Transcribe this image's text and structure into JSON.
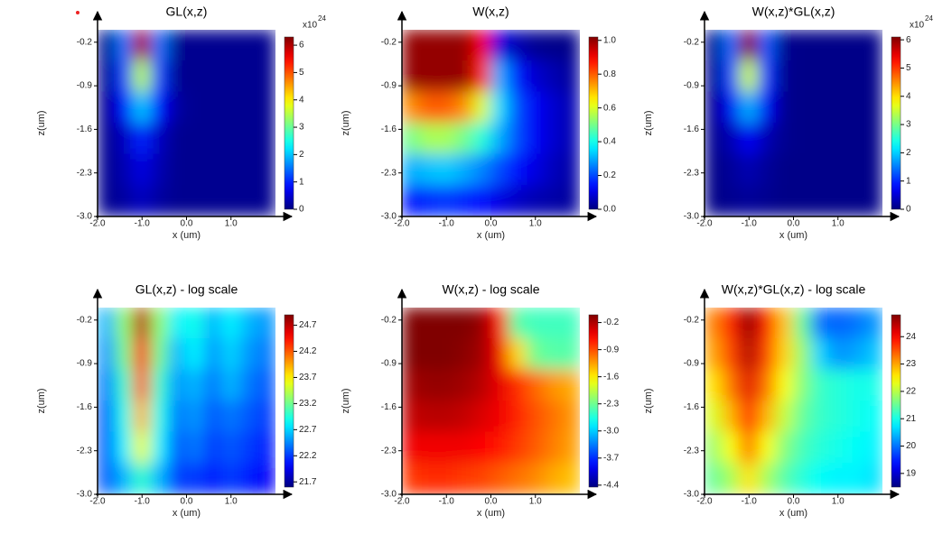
{
  "chart_data": [
    {
      "type": "heatmap",
      "title": "GL(x,z)",
      "xlabel": "x (um)",
      "ylabel": "z(um)",
      "colormap": "jet",
      "colorbar_label": "x10",
      "colorbar_exponent": "24",
      "x": [
        -1.8,
        -1.4,
        -1.0,
        -0.6,
        -0.2,
        0.2,
        0.6,
        1.0,
        1.4,
        1.8
      ],
      "z": [
        -0.25,
        -0.75,
        -1.25,
        -1.75,
        -2.25,
        -2.75
      ],
      "values": [
        [
          0.1,
          1.5,
          6.0,
          1.5,
          0.1,
          0.1,
          0.1,
          0.1,
          0.1,
          0.1
        ],
        [
          0.1,
          1.2,
          3.5,
          1.2,
          0.1,
          0.1,
          0.1,
          0.1,
          0.1,
          0.1
        ],
        [
          0.1,
          0.8,
          2.0,
          0.8,
          0.2,
          0.1,
          0.1,
          0.1,
          0.1,
          0.1
        ],
        [
          0.1,
          0.4,
          1.0,
          0.4,
          0.1,
          0.1,
          0.1,
          0.1,
          0.1,
          0.1
        ],
        [
          0.1,
          0.3,
          0.6,
          0.3,
          0.1,
          0.1,
          0.1,
          0.1,
          0.1,
          0.1
        ],
        [
          0.1,
          0.2,
          0.4,
          0.2,
          0.1,
          0.1,
          0.1,
          0.1,
          0.1,
          0.1
        ]
      ],
      "xlim": [
        -2,
        2
      ],
      "ylim": [
        -3,
        0
      ],
      "xticks": [
        {
          "value": -2,
          "label": "-2.0"
        },
        {
          "value": -1,
          "label": "-1.0"
        },
        {
          "value": 0,
          "label": "0.0"
        },
        {
          "value": 1,
          "label": "1.0"
        }
      ],
      "yticks": [
        -0.2,
        -0.9,
        -1.6,
        -2.3,
        {
          "value": -3,
          "label": "-3.0"
        }
      ],
      "clim": [
        0,
        6.3
      ],
      "cticks": [
        0,
        1,
        2,
        3,
        4,
        5,
        6
      ]
    },
    {
      "type": "heatmap",
      "title": "W(x,z)",
      "xlabel": "x (um)",
      "ylabel": "z(um)",
      "colormap": "jet",
      "x": [
        -1.8,
        -1.4,
        -1.0,
        -0.6,
        -0.2,
        0.2,
        0.6,
        1.0,
        1.4,
        1.8
      ],
      "z": [
        -0.25,
        -0.75,
        -1.25,
        -1.75,
        -2.25,
        -2.75
      ],
      "values": [
        [
          1,
          1,
          1,
          1,
          0.9,
          0.1,
          0.05,
          0.02,
          0.01,
          0.01
        ],
        [
          1,
          1,
          1,
          1,
          0.85,
          0.3,
          0.15,
          0.08,
          0.05,
          0.03
        ],
        [
          0.75,
          0.8,
          0.8,
          0.75,
          0.6,
          0.35,
          0.2,
          0.12,
          0.08,
          0.05
        ],
        [
          0.5,
          0.55,
          0.55,
          0.5,
          0.42,
          0.3,
          0.2,
          0.12,
          0.08,
          0.05
        ],
        [
          0.3,
          0.32,
          0.33,
          0.3,
          0.26,
          0.2,
          0.14,
          0.1,
          0.06,
          0.04
        ],
        [
          0.15,
          0.17,
          0.18,
          0.16,
          0.14,
          0.1,
          0.07,
          0.05,
          0.04,
          0.03
        ]
      ],
      "xlim": [
        -2,
        2
      ],
      "ylim": [
        -3,
        0
      ],
      "xticks": [
        {
          "value": -2,
          "label": "-2.0"
        },
        {
          "value": -1,
          "label": "-1.0"
        },
        {
          "value": 0,
          "label": "0.0"
        },
        {
          "value": 1,
          "label": "1.0"
        }
      ],
      "yticks": [
        -0.2,
        -0.9,
        -1.6,
        -2.3,
        {
          "value": -3,
          "label": "-3.0"
        }
      ],
      "clim": [
        0,
        1.02
      ],
      "cticks": [
        {
          "value": 0,
          "label": "0.0"
        },
        0.2,
        0.4,
        0.6,
        0.8,
        {
          "value": 1,
          "label": "1.0"
        }
      ]
    },
    {
      "type": "heatmap",
      "title": "W(x,z)*GL(x,z)",
      "xlabel": "x (um)",
      "ylabel": "z(um)",
      "colormap": "jet",
      "colorbar_label": "x10",
      "colorbar_exponent": "24",
      "x": [
        -1.8,
        -1.4,
        -1.0,
        -0.6,
        -0.2,
        0.2,
        0.6,
        1.0,
        1.4,
        1.8
      ],
      "z": [
        -0.25,
        -0.75,
        -1.25,
        -1.75,
        -2.25,
        -2.75
      ],
      "values": [
        [
          0.1,
          1.4,
          6.0,
          1.3,
          0.1,
          0.05,
          0.05,
          0.05,
          0.05,
          0.05
        ],
        [
          0.1,
          1.2,
          3.5,
          1.1,
          0.1,
          0.05,
          0.05,
          0.05,
          0.05,
          0.05
        ],
        [
          0.1,
          0.7,
          1.8,
          0.7,
          0.1,
          0.05,
          0.05,
          0.05,
          0.05,
          0.05
        ],
        [
          0.1,
          0.3,
          0.7,
          0.3,
          0.1,
          0.05,
          0.05,
          0.05,
          0.05,
          0.05
        ],
        [
          0.05,
          0.15,
          0.3,
          0.15,
          0.05,
          0.05,
          0.05,
          0.05,
          0.05,
          0.05
        ],
        [
          0.05,
          0.1,
          0.15,
          0.1,
          0.05,
          0.05,
          0.05,
          0.05,
          0.05,
          0.05
        ]
      ],
      "xlim": [
        -2,
        2
      ],
      "ylim": [
        -3,
        0
      ],
      "xticks": [
        {
          "value": -2,
          "label": "-2.0"
        },
        {
          "value": -1,
          "label": "-1.0"
        },
        {
          "value": 0,
          "label": "0.0"
        },
        {
          "value": 1,
          "label": "1.0"
        }
      ],
      "yticks": [
        -0.2,
        -0.9,
        -1.6,
        -2.3,
        {
          "value": -3,
          "label": "-3.0"
        }
      ],
      "clim": [
        0,
        6.1
      ],
      "cticks": [
        0,
        1,
        2,
        3,
        4,
        5,
        6
      ]
    },
    {
      "type": "heatmap",
      "title": "GL(x,z) - log scale",
      "xlabel": "x (um)",
      "ylabel": "z(um)",
      "colormap": "jet",
      "x": [
        -1.8,
        -1.4,
        -1.0,
        -0.6,
        -0.2,
        0.2,
        0.6,
        1.0,
        1.4,
        1.8
      ],
      "z": [
        -0.25,
        -0.75,
        -1.25,
        -1.75,
        -2.25,
        -2.75
      ],
      "values": [
        [
          22.6,
          23.3,
          24.7,
          23.3,
          22.8,
          22.9,
          22.6,
          22.8,
          22.6,
          22.5
        ],
        [
          22.5,
          23.2,
          24.5,
          23.2,
          22.6,
          22.8,
          22.5,
          22.7,
          22.5,
          22.4
        ],
        [
          22.4,
          23.0,
          24.2,
          23.0,
          22.5,
          22.6,
          22.4,
          22.6,
          22.4,
          22.3
        ],
        [
          22.3,
          22.9,
          23.9,
          22.9,
          22.4,
          22.5,
          22.3,
          22.4,
          22.3,
          22.2
        ],
        [
          22.3,
          22.8,
          23.6,
          22.8,
          22.3,
          22.4,
          22.2,
          22.3,
          22.2,
          22.1
        ],
        [
          22.3,
          22.6,
          23.0,
          22.6,
          22.2,
          22.2,
          22.1,
          22.2,
          22.1,
          22.0
        ]
      ],
      "xlim": [
        -2,
        2
      ],
      "ylim": [
        -3,
        0
      ],
      "xticks": [
        {
          "value": -2,
          "label": "-2.0"
        },
        {
          "value": -1,
          "label": "-1.0"
        },
        {
          "value": 0,
          "label": "0.0"
        },
        {
          "value": 1,
          "label": "1.0"
        }
      ],
      "yticks": [
        -0.2,
        -0.9,
        -1.6,
        -2.3,
        {
          "value": -3,
          "label": "-3.0"
        }
      ],
      "clim": [
        21.6,
        24.9
      ],
      "cticks": [
        21.7,
        22.2,
        22.7,
        23.2,
        23.7,
        24.2,
        24.7
      ]
    },
    {
      "type": "heatmap",
      "title": "W(x,z) - log scale",
      "xlabel": "x (um)",
      "ylabel": "z(um)",
      "colormap": "jet",
      "x": [
        -1.8,
        -1.4,
        -1.0,
        -0.6,
        -0.2,
        0.2,
        0.6,
        1.0,
        1.4,
        1.8
      ],
      "z": [
        -0.25,
        -0.75,
        -1.25,
        -1.75,
        -2.25,
        -2.75
      ],
      "values": [
        [
          0,
          0,
          0,
          0,
          -0.1,
          -0.6,
          -2.4,
          -2.5,
          -2.5,
          -2.5
        ],
        [
          0,
          0,
          0,
          -0.05,
          -0.15,
          -0.5,
          -1.5,
          -2.3,
          -2.4,
          -2.4
        ],
        [
          -0.15,
          -0.1,
          -0.1,
          -0.15,
          -0.25,
          -0.45,
          -0.75,
          -1.0,
          -1.2,
          -1.3
        ],
        [
          -0.3,
          -0.25,
          -0.25,
          -0.3,
          -0.4,
          -0.5,
          -0.7,
          -0.9,
          -1.05,
          -1.2
        ],
        [
          -0.5,
          -0.5,
          -0.5,
          -0.5,
          -0.55,
          -0.65,
          -0.8,
          -0.95,
          -1.1,
          -1.25
        ],
        [
          -0.8,
          -0.75,
          -0.75,
          -0.8,
          -0.85,
          -0.95,
          -1.05,
          -1.15,
          -1.3,
          -1.4
        ]
      ],
      "xlim": [
        -2,
        2
      ],
      "ylim": [
        -3,
        0
      ],
      "xticks": [
        {
          "value": -2,
          "label": "-2.0"
        },
        {
          "value": -1,
          "label": "-1.0"
        },
        {
          "value": 0,
          "label": "0.0"
        },
        {
          "value": 1,
          "label": "1.0"
        }
      ],
      "yticks": [
        -0.2,
        -0.9,
        -1.6,
        -2.3,
        {
          "value": -3,
          "label": "-3.0"
        }
      ],
      "clim": [
        -4.45,
        0
      ],
      "cticks": [
        -0.2,
        -0.9,
        -1.6,
        -2.3,
        {
          "value": -3,
          "label": "-3.0"
        },
        -3.7,
        -4.4
      ]
    },
    {
      "type": "heatmap",
      "title": "W(x,z)*GL(x,z) - log scale",
      "xlabel": "x (um)",
      "ylabel": "z(um)",
      "colormap": "jet",
      "x": [
        -1.8,
        -1.4,
        -1.0,
        -0.6,
        -0.2,
        0.2,
        0.6,
        1.0,
        1.4,
        1.8
      ],
      "z": [
        -0.25,
        -0.75,
        -1.25,
        -1.75,
        -2.25,
        -2.75
      ],
      "values": [
        [
          23.2,
          23.8,
          24.7,
          23.8,
          22.8,
          21.5,
          20.0,
          19.9,
          20.0,
          20.2
        ],
        [
          23.0,
          23.6,
          24.5,
          23.6,
          22.7,
          21.8,
          20.6,
          20.2,
          20.3,
          20.5
        ],
        [
          22.6,
          23.3,
          24.2,
          23.3,
          22.4,
          21.7,
          21.2,
          21.1,
          21.0,
          21.0
        ],
        [
          22.2,
          22.9,
          23.8,
          22.9,
          22.1,
          21.5,
          21.2,
          21.1,
          21.0,
          20.9
        ],
        [
          21.8,
          22.4,
          23.3,
          22.4,
          21.7,
          21.3,
          21.1,
          21.0,
          20.9,
          20.8
        ],
        [
          21.5,
          21.9,
          22.6,
          21.9,
          21.4,
          21.1,
          20.9,
          20.8,
          20.8,
          20.7
        ]
      ],
      "xlim": [
        -2,
        2
      ],
      "ylim": [
        -3,
        0
      ],
      "xticks": [
        {
          "value": -2,
          "label": "-2.0"
        },
        {
          "value": -1,
          "label": "-1.0"
        },
        {
          "value": 0,
          "label": "0.0"
        },
        {
          "value": 1,
          "label": "1.0"
        }
      ],
      "yticks": [
        -0.2,
        -0.9,
        -1.6,
        -2.3,
        {
          "value": -3,
          "label": "-3.0"
        }
      ],
      "clim": [
        18.5,
        24.8
      ],
      "cticks": [
        19,
        20,
        21,
        22,
        23,
        24
      ]
    }
  ]
}
